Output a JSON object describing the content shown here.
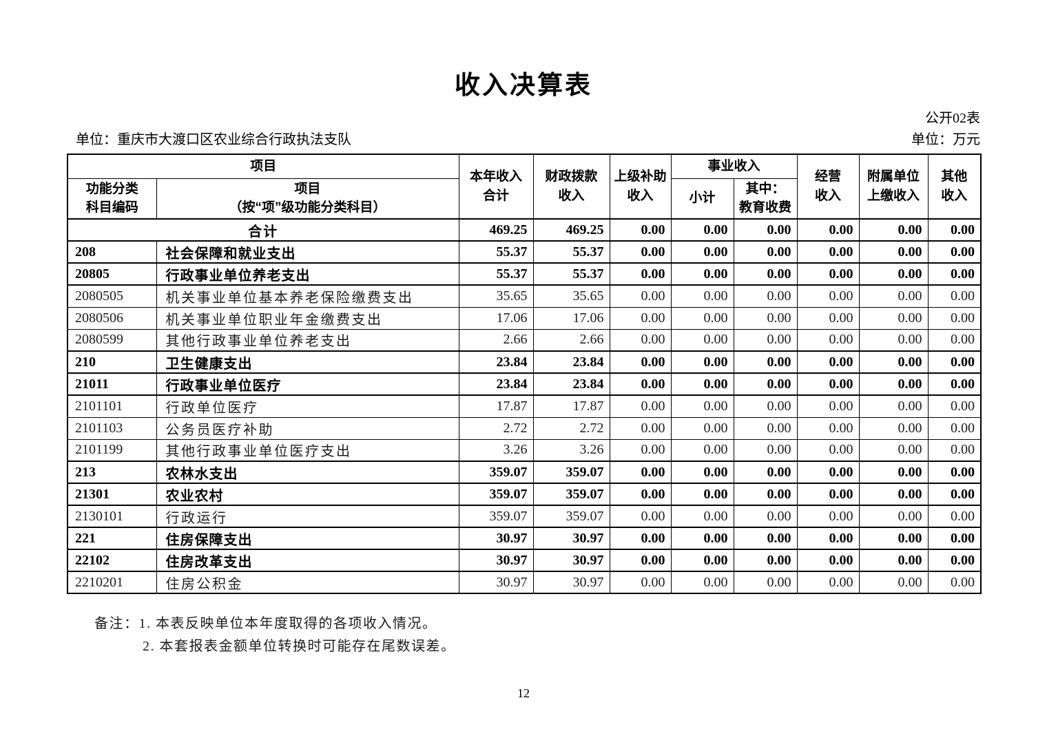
{
  "page": {
    "title": "收入决算表",
    "table_no": "公开02表",
    "unit_left": "单位：重庆市大渡口区农业综合行政执法支队",
    "unit_right": "单位：万元",
    "page_number": "12"
  },
  "table": {
    "header": {
      "item_group": "项目",
      "code": "功能分类\n科目编码",
      "item": "项目\n（按“项”级功能分类科目）",
      "total_income": "本年收入\n合计",
      "fiscal_appropriation": "财政拨款\n收入",
      "superior_subsidy": "上级补助\n收入",
      "business_income_group": "事业收入",
      "subtotal": "小计",
      "education_fees": "其中：\n教育收费",
      "operating_income": "经营\n收入",
      "affiliated_units": "附属单位\n上缴收入",
      "other_income": "其他\n收入"
    },
    "rows": [
      {
        "code": "",
        "name": "合计",
        "merged": true,
        "bold": true,
        "values": [
          "469.25",
          "469.25",
          "0.00",
          "0.00",
          "0.00",
          "0.00",
          "0.00",
          "0.00"
        ]
      },
      {
        "code": "208",
        "name": "社会保障和就业支出",
        "merged": false,
        "bold": true,
        "values": [
          "55.37",
          "55.37",
          "0.00",
          "0.00",
          "0.00",
          "0.00",
          "0.00",
          "0.00"
        ]
      },
      {
        "code": "20805",
        "name": "行政事业单位养老支出",
        "merged": false,
        "bold": true,
        "values": [
          "55.37",
          "55.37",
          "0.00",
          "0.00",
          "0.00",
          "0.00",
          "0.00",
          "0.00"
        ]
      },
      {
        "code": "2080505",
        "name": "机关事业单位基本养老保险缴费支出",
        "merged": false,
        "bold": false,
        "values": [
          "35.65",
          "35.65",
          "0.00",
          "0.00",
          "0.00",
          "0.00",
          "0.00",
          "0.00"
        ]
      },
      {
        "code": "2080506",
        "name": "机关事业单位职业年金缴费支出",
        "merged": false,
        "bold": false,
        "values": [
          "17.06",
          "17.06",
          "0.00",
          "0.00",
          "0.00",
          "0.00",
          "0.00",
          "0.00"
        ]
      },
      {
        "code": "2080599",
        "name": "其他行政事业单位养老支出",
        "merged": false,
        "bold": false,
        "values": [
          "2.66",
          "2.66",
          "0.00",
          "0.00",
          "0.00",
          "0.00",
          "0.00",
          "0.00"
        ]
      },
      {
        "code": "210",
        "name": "卫生健康支出",
        "merged": false,
        "bold": true,
        "values": [
          "23.84",
          "23.84",
          "0.00",
          "0.00",
          "0.00",
          "0.00",
          "0.00",
          "0.00"
        ]
      },
      {
        "code": "21011",
        "name": "行政事业单位医疗",
        "merged": false,
        "bold": true,
        "values": [
          "23.84",
          "23.84",
          "0.00",
          "0.00",
          "0.00",
          "0.00",
          "0.00",
          "0.00"
        ]
      },
      {
        "code": "2101101",
        "name": "行政单位医疗",
        "merged": false,
        "bold": false,
        "values": [
          "17.87",
          "17.87",
          "0.00",
          "0.00",
          "0.00",
          "0.00",
          "0.00",
          "0.00"
        ]
      },
      {
        "code": "2101103",
        "name": "公务员医疗补助",
        "merged": false,
        "bold": false,
        "values": [
          "2.72",
          "2.72",
          "0.00",
          "0.00",
          "0.00",
          "0.00",
          "0.00",
          "0.00"
        ]
      },
      {
        "code": "2101199",
        "name": "其他行政事业单位医疗支出",
        "merged": false,
        "bold": false,
        "values": [
          "3.26",
          "3.26",
          "0.00",
          "0.00",
          "0.00",
          "0.00",
          "0.00",
          "0.00"
        ]
      },
      {
        "code": "213",
        "name": "农林水支出",
        "merged": false,
        "bold": true,
        "values": [
          "359.07",
          "359.07",
          "0.00",
          "0.00",
          "0.00",
          "0.00",
          "0.00",
          "0.00"
        ]
      },
      {
        "code": "21301",
        "name": "农业农村",
        "merged": false,
        "bold": true,
        "values": [
          "359.07",
          "359.07",
          "0.00",
          "0.00",
          "0.00",
          "0.00",
          "0.00",
          "0.00"
        ]
      },
      {
        "code": "2130101",
        "name": "行政运行",
        "merged": false,
        "bold": false,
        "values": [
          "359.07",
          "359.07",
          "0.00",
          "0.00",
          "0.00",
          "0.00",
          "0.00",
          "0.00"
        ]
      },
      {
        "code": "221",
        "name": "住房保障支出",
        "merged": false,
        "bold": true,
        "values": [
          "30.97",
          "30.97",
          "0.00",
          "0.00",
          "0.00",
          "0.00",
          "0.00",
          "0.00"
        ]
      },
      {
        "code": "22102",
        "name": "住房改革支出",
        "merged": false,
        "bold": true,
        "values": [
          "30.97",
          "30.97",
          "0.00",
          "0.00",
          "0.00",
          "0.00",
          "0.00",
          "0.00"
        ]
      },
      {
        "code": "2210201",
        "name": "住房公积金",
        "merged": false,
        "bold": false,
        "values": [
          "30.97",
          "30.97",
          "0.00",
          "0.00",
          "0.00",
          "0.00",
          "0.00",
          "0.00"
        ]
      }
    ]
  },
  "notes": {
    "label": "备注：",
    "items": [
      "1. 本表反映单位本年度取得的各项收入情况。",
      "2. 本套报表金额单位转换时可能存在尾数误差。"
    ]
  }
}
